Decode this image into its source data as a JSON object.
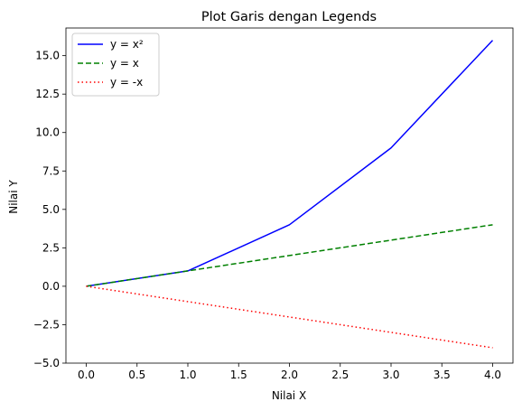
{
  "chart_data": {
    "type": "line",
    "title": "Plot Garis dengan Legends",
    "xlabel": "Nilai X",
    "ylabel": "Nilai Y",
    "xlim": [
      -0.2,
      4.2
    ],
    "ylim": [
      -5,
      16.8
    ],
    "xticks": [
      0.0,
      0.5,
      1.0,
      1.5,
      2.0,
      2.5,
      3.0,
      3.5,
      4.0
    ],
    "xtick_labels": [
      "0.0",
      "0.5",
      "1.0",
      "1.5",
      "2.0",
      "2.5",
      "3.0",
      "3.5",
      "4.0"
    ],
    "yticks": [
      -5.0,
      -2.5,
      0.0,
      2.5,
      5.0,
      7.5,
      10.0,
      12.5,
      15.0
    ],
    "ytick_labels": [
      "−5.0",
      "−2.5",
      "0.0",
      "2.5",
      "5.0",
      "7.5",
      "10.0",
      "12.5",
      "15.0"
    ],
    "grid": false,
    "legend_position": "top-left",
    "x": [
      0,
      1,
      2,
      3,
      4
    ],
    "series": [
      {
        "name": "y = x²",
        "values": [
          0,
          1,
          4,
          9,
          16
        ],
        "color": "#0000ff",
        "line_style": "solid"
      },
      {
        "name": "y = x",
        "values": [
          0,
          1,
          2,
          3,
          4
        ],
        "color": "#008000",
        "line_style": "dashed"
      },
      {
        "name": "y = -x",
        "values": [
          0,
          -1,
          -2,
          -3,
          -4
        ],
        "color": "#ff0000",
        "line_style": "dotted"
      }
    ]
  }
}
